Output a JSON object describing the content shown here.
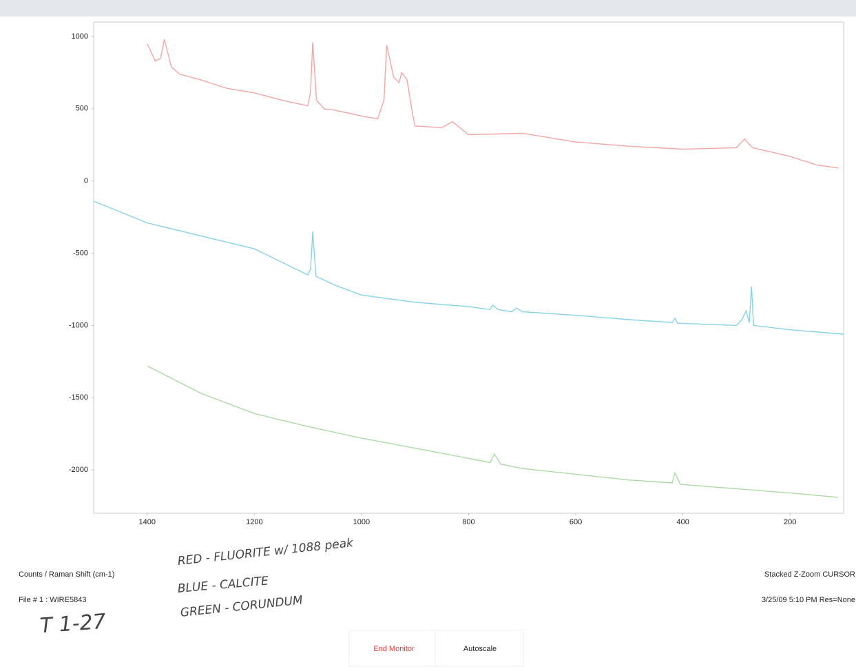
{
  "chart_data": {
    "type": "line",
    "xlim": [
      1500,
      100
    ],
    "xticks": [
      1400,
      1200,
      1000,
      800,
      600,
      400,
      200
    ],
    "ylim": [
      -2300,
      1100
    ],
    "yticks": [
      1000,
      500,
      0,
      -500,
      -1000,
      -1500,
      -2000
    ],
    "grid": false,
    "series": [
      {
        "color": "#f2a5a5",
        "x": [
          1400,
          1385,
          1375,
          1368,
          1355,
          1340,
          1300,
          1250,
          1200,
          1150,
          1100,
          1095,
          1091,
          1084,
          1070,
          1050,
          1000,
          970,
          958,
          953,
          940,
          930,
          925,
          915,
          905,
          900,
          850,
          830,
          800,
          700,
          600,
          500,
          400,
          300,
          285,
          270,
          200,
          150,
          110
        ],
        "values": [
          950,
          830,
          850,
          980,
          790,
          740,
          700,
          640,
          610,
          560,
          520,
          620,
          960,
          560,
          500,
          490,
          450,
          430,
          560,
          940,
          720,
          680,
          750,
          700,
          470,
          380,
          370,
          410,
          320,
          330,
          270,
          240,
          220,
          230,
          290,
          230,
          170,
          110,
          90
        ]
      },
      {
        "color": "#86d2ea",
        "x": [
          1500,
          1400,
          1300,
          1200,
          1100,
          1095,
          1091,
          1085,
          1050,
          1000,
          900,
          800,
          760,
          755,
          745,
          720,
          710,
          700,
          600,
          500,
          420,
          415,
          410,
          300,
          290,
          282,
          276,
          272,
          268,
          200,
          100
        ],
        "values": [
          -140,
          -290,
          -380,
          -470,
          -650,
          -610,
          -350,
          -660,
          -720,
          -790,
          -840,
          -870,
          -890,
          -860,
          -890,
          -905,
          -880,
          -905,
          -930,
          -960,
          -980,
          -950,
          -985,
          -1000,
          -960,
          -900,
          -980,
          -730,
          -1000,
          -1030,
          -1060
        ]
      },
      {
        "color": "#acd9a4",
        "x": [
          1400,
          1300,
          1200,
          1100,
          1000,
          900,
          800,
          760,
          752,
          740,
          700,
          600,
          500,
          420,
          415,
          405,
          300,
          200,
          110
        ],
        "values": [
          -1280,
          -1470,
          -1610,
          -1700,
          -1780,
          -1850,
          -1920,
          -1950,
          -1890,
          -1960,
          -1990,
          -2030,
          -2070,
          -2090,
          -2020,
          -2100,
          -2130,
          -2160,
          -2190
        ]
      }
    ]
  },
  "footer": {
    "axis_caption": "Counts / Raman Shift (cm-1)",
    "file": "File # 1 : WIRE5843",
    "mode": "Stacked Z-Zoom CURSOR",
    "timestamp": "3/25/09  5:10 PM  Res=None"
  },
  "buttons": [
    "End Monitor",
    "Autoscale"
  ],
  "handwriting": [
    "RED - FLUORITE w/ 1088 peak",
    "BLUE - CALCITE",
    "GREEN - CORUNDUM",
    "T 1-27"
  ]
}
